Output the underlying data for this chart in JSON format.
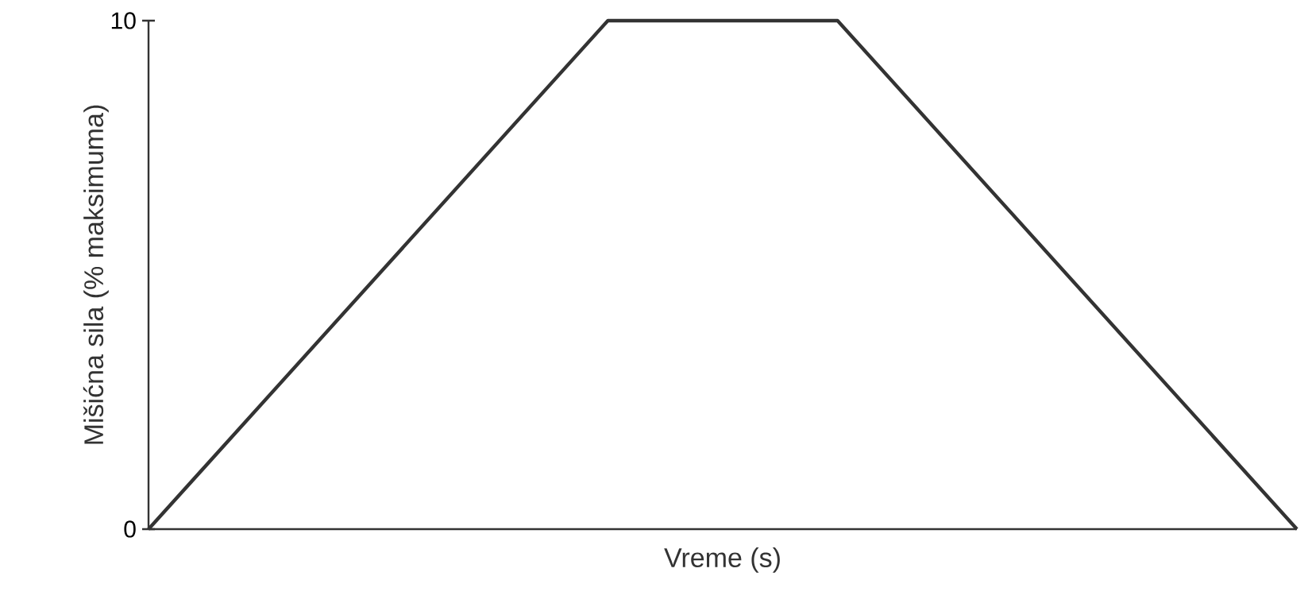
{
  "chart_data": {
    "type": "line",
    "xlabel": "Vreme (s)",
    "ylabel": "Mišićna sila (% maksimuma)",
    "categories": [
      null,
      null,
      null,
      null,
      null,
      null
    ],
    "series": [
      {
        "color": "#333333",
        "values": [
          0,
          5,
          10,
          10,
          5,
          0
        ]
      }
    ],
    "ylim": [
      0,
      10
    ],
    "yticks": [
      0,
      10
    ],
    "marker": "none",
    "line_style": "solid"
  }
}
